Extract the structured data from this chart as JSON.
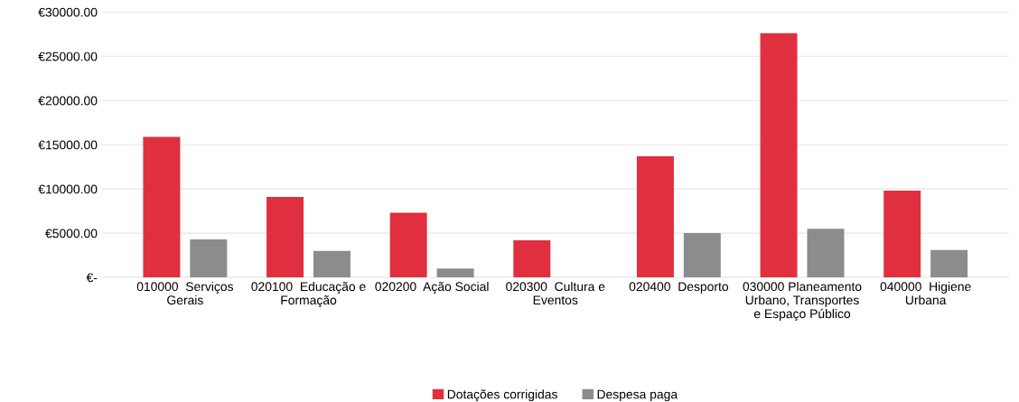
{
  "chart_data": {
    "type": "bar",
    "categories": [
      "010000  Serviços Gerais",
      "020100  Educação e Formação",
      "020200  Ação Social",
      "020300  Cultura e Eventos",
      "020400  Desporto",
      "030000 Planeamento Urbano, Transportes e Espaço Público",
      "040000  Higiene Urbana"
    ],
    "series": [
      {
        "name": "Dotações corrigidas",
        "color": "#e0303f",
        "values": [
          15900,
          9100,
          7300,
          4200,
          13700,
          27600,
          9800
        ]
      },
      {
        "name": "Despesa paga",
        "color": "#8c8c8c",
        "values": [
          4300,
          3000,
          1000,
          null,
          5000,
          5500,
          3100
        ]
      }
    ],
    "ylim": [
      0,
      30000
    ],
    "yticks": [
      {
        "value": 0,
        "label": "€-"
      },
      {
        "value": 5000,
        "label": "€5000.00"
      },
      {
        "value": 10000,
        "label": "€10000.00"
      },
      {
        "value": 15000,
        "label": "€15000.00"
      },
      {
        "value": 20000,
        "label": "€20000.00"
      },
      {
        "value": 25000,
        "label": "€25000.00"
      },
      {
        "value": 30000,
        "label": "€30000.00"
      }
    ],
    "grid": "y",
    "legend": "bottom"
  }
}
